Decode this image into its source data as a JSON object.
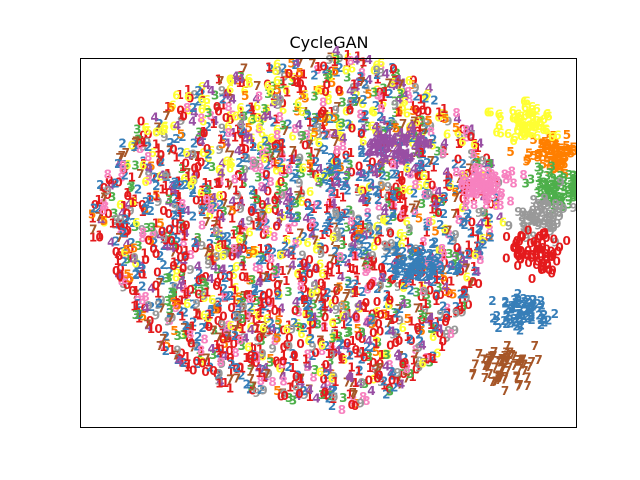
{
  "chart_data": {
    "type": "scatter",
    "title": "CycleGAN",
    "xlabel": "",
    "ylabel": "",
    "grid": false,
    "legend": "none",
    "marker": "digit glyphs (class labels 0-9)",
    "classes": [
      {
        "label": "0",
        "color": "#e41a1c"
      },
      {
        "label": "1",
        "color": "#e41a1c"
      },
      {
        "label": "2",
        "color": "#377eb8"
      },
      {
        "label": "3",
        "color": "#4daf4a"
      },
      {
        "label": "4",
        "color": "#984ea3"
      },
      {
        "label": "5",
        "color": "#ff7f00"
      },
      {
        "label": "6",
        "color": "#ffff33"
      },
      {
        "label": "7",
        "color": "#a65628"
      },
      {
        "label": "8",
        "color": "#f781bf"
      },
      {
        "label": "9",
        "color": "#999999"
      }
    ],
    "clusters": [
      {
        "label": "5",
        "color": "#ff7f00",
        "cx": 0.95,
        "cy": 0.73
      },
      {
        "label": "3",
        "color": "#4daf4a",
        "cx": 0.97,
        "cy": 0.64
      },
      {
        "label": "9",
        "color": "#999999",
        "cx": 0.93,
        "cy": 0.56
      },
      {
        "label": "8",
        "color": "#f781bf",
        "cx": 0.81,
        "cy": 0.64
      },
      {
        "label": "0",
        "color": "#e41a1c",
        "cx": 0.92,
        "cy": 0.46
      },
      {
        "label": "2",
        "color": "#377eb8",
        "cx": 0.89,
        "cy": 0.3
      },
      {
        "label": "7",
        "color": "#a65628",
        "cx": 0.86,
        "cy": 0.15
      },
      {
        "label": "6",
        "color": "#ffff33",
        "cx": 0.9,
        "cy": 0.82
      },
      {
        "label": "4",
        "color": "#984ea3",
        "cx": 0.63,
        "cy": 0.75
      },
      {
        "label": "2",
        "color": "#377eb8",
        "cx": 0.68,
        "cy": 0.43
      }
    ]
  }
}
